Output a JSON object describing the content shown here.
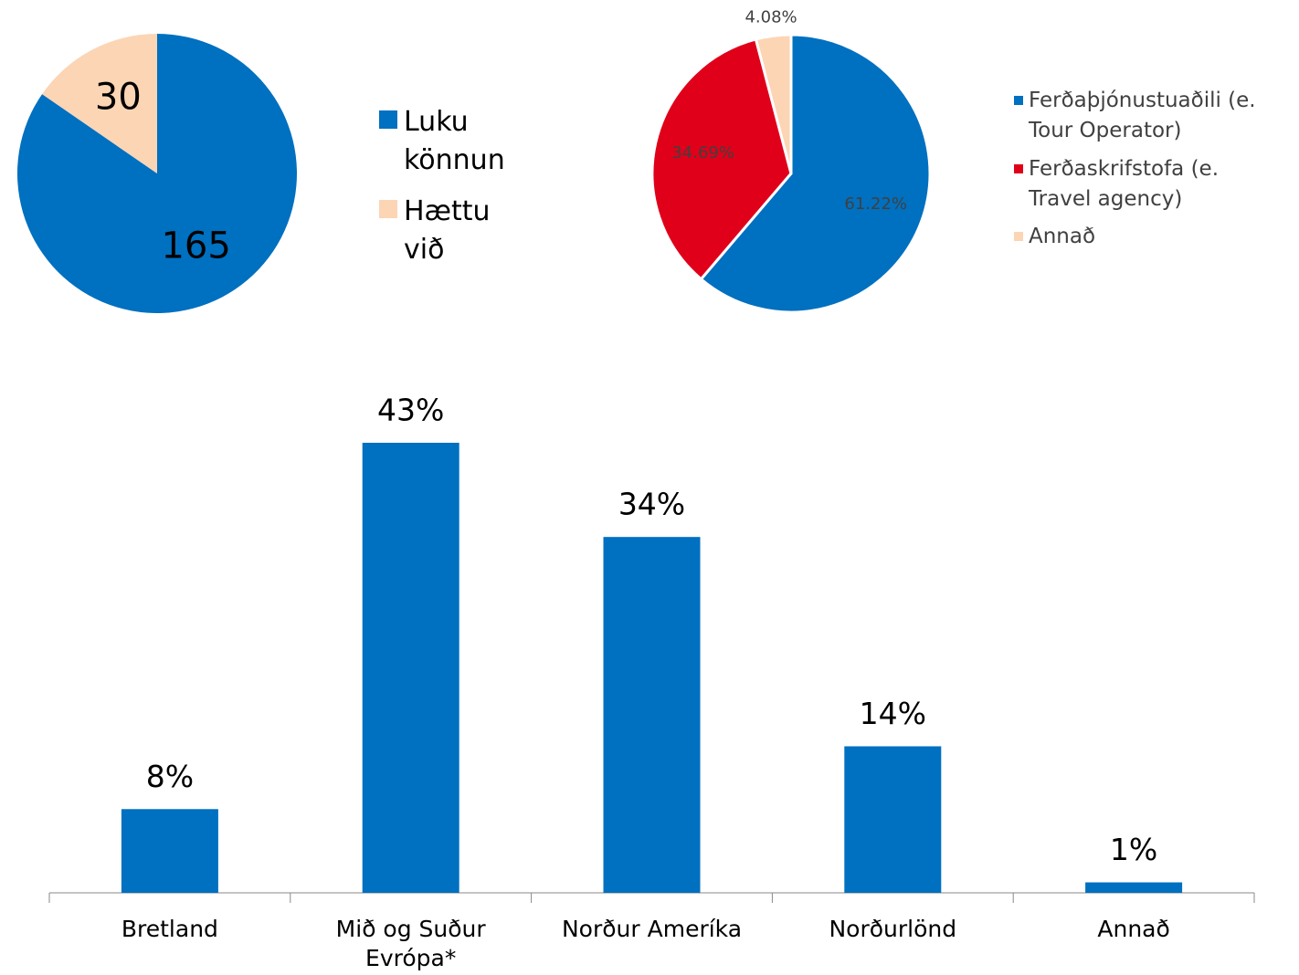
{
  "chart_data": [
    {
      "type": "pie",
      "categories": [
        "Luku könnun",
        "Hættu við"
      ],
      "values": [
        165,
        30
      ],
      "colors": [
        "#0070c0",
        "#fcd5b5"
      ]
    },
    {
      "type": "pie",
      "categories": [
        "Ferðaþjónustuaðili (e. Tour Operator)",
        "Ferðaskrifstofa (e. Travel agency)",
        "Annað"
      ],
      "values": [
        61.22,
        34.69,
        4.08
      ],
      "value_labels": [
        "61.22%",
        "34.69%",
        "4.08%"
      ],
      "colors": [
        "#0070c0",
        "#e0001a",
        "#fcd5b5"
      ]
    },
    {
      "type": "bar",
      "categories": [
        "Bretland",
        "Mið og Suður Evrópa*",
        "Norður Ameríka",
        "Norðurlönd",
        "Annað"
      ],
      "values": [
        8,
        43,
        34,
        14,
        1
      ],
      "value_labels": [
        "8%",
        "43%",
        "34%",
        "14%",
        "1%"
      ],
      "color": "#0070c0"
    }
  ]
}
